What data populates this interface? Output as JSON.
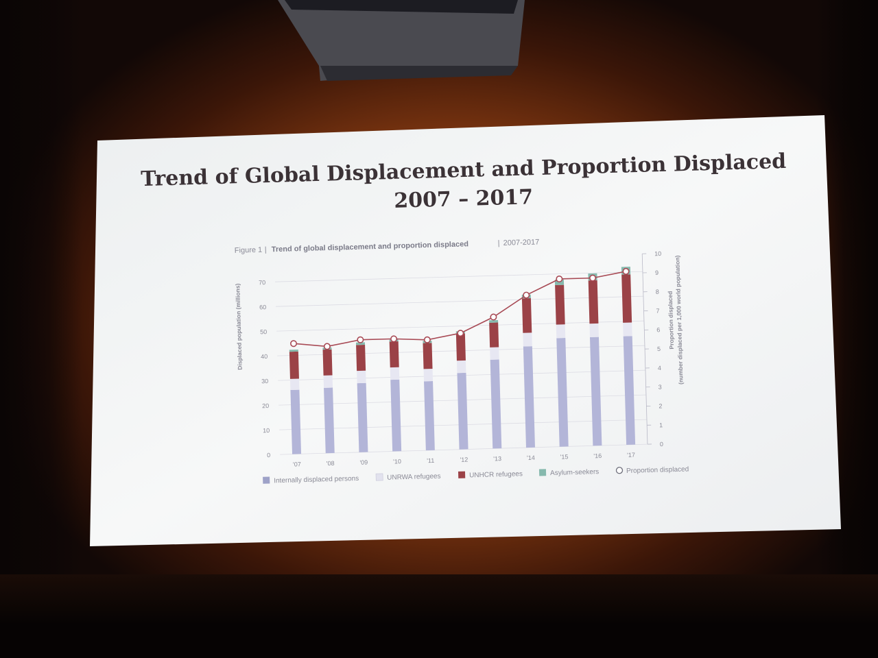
{
  "slide": {
    "title_line1": "Trend of Global Displacement and Proportion Displaced",
    "title_line2": "2007 – 2017"
  },
  "colors": {
    "idp": "#b3b5d8",
    "unrwa": "#e7e7f2",
    "unhcr": "#9b4247",
    "asylum": "#86b9ad",
    "proportion_line": "#a84a55",
    "axis_text": "#8a8a96"
  },
  "chart_data": {
    "type": "bar",
    "figure_label": "Figure 1",
    "title": "Trend of global displacement and proportion displaced",
    "subtitle": "2007-2017",
    "ylabel": "Displaced population (millions)",
    "y2label_line1": "Proportion displaced",
    "y2label_line2": "(number displaced per 1,000 world population)",
    "categories": [
      "'07",
      "'08",
      "'09",
      "'10",
      "'11",
      "'12",
      "'13",
      "'14",
      "'15",
      "'16",
      "'17"
    ],
    "ylim": [
      0,
      70
    ],
    "yticks": [
      "0",
      "10",
      "20",
      "30",
      "40",
      "50",
      "60",
      "70"
    ],
    "y2lim": [
      0,
      10
    ],
    "y2ticks": [
      "0",
      "1",
      "2",
      "3",
      "4",
      "5",
      "6",
      "7",
      "8",
      "9",
      "10"
    ],
    "stacked": true,
    "series": [
      {
        "name": "Internally displaced persons",
        "color_key": "idp",
        "values": [
          26.0,
          26.5,
          28.0,
          29.0,
          28.0,
          31.0,
          36.0,
          41.0,
          44.0,
          44.0,
          44.0
        ]
      },
      {
        "name": "UNRWA refugees",
        "color_key": "unrwa",
        "values": [
          4.5,
          5.0,
          5.0,
          5.0,
          5.0,
          5.0,
          5.0,
          5.5,
          5.5,
          5.5,
          5.5
        ]
      },
      {
        "name": "UNHCR refugees",
        "color_key": "unhcr",
        "values": [
          11.0,
          10.5,
          10.5,
          10.5,
          10.5,
          11.0,
          10.0,
          14.0,
          16.0,
          17.5,
          19.5
        ]
      },
      {
        "name": "Asylum-seekers",
        "color_key": "asylum",
        "values": [
          0.8,
          0.8,
          1.0,
          0.8,
          0.9,
          0.9,
          1.0,
          1.5,
          2.2,
          2.8,
          3.1
        ]
      }
    ],
    "line_series": {
      "name": "Proportion displaced",
      "axis": "right",
      "values": [
        5.8,
        5.6,
        5.9,
        5.9,
        5.8,
        6.1,
        6.9,
        8.0,
        8.8,
        8.8,
        9.1
      ]
    },
    "legend_position": "bottom"
  }
}
